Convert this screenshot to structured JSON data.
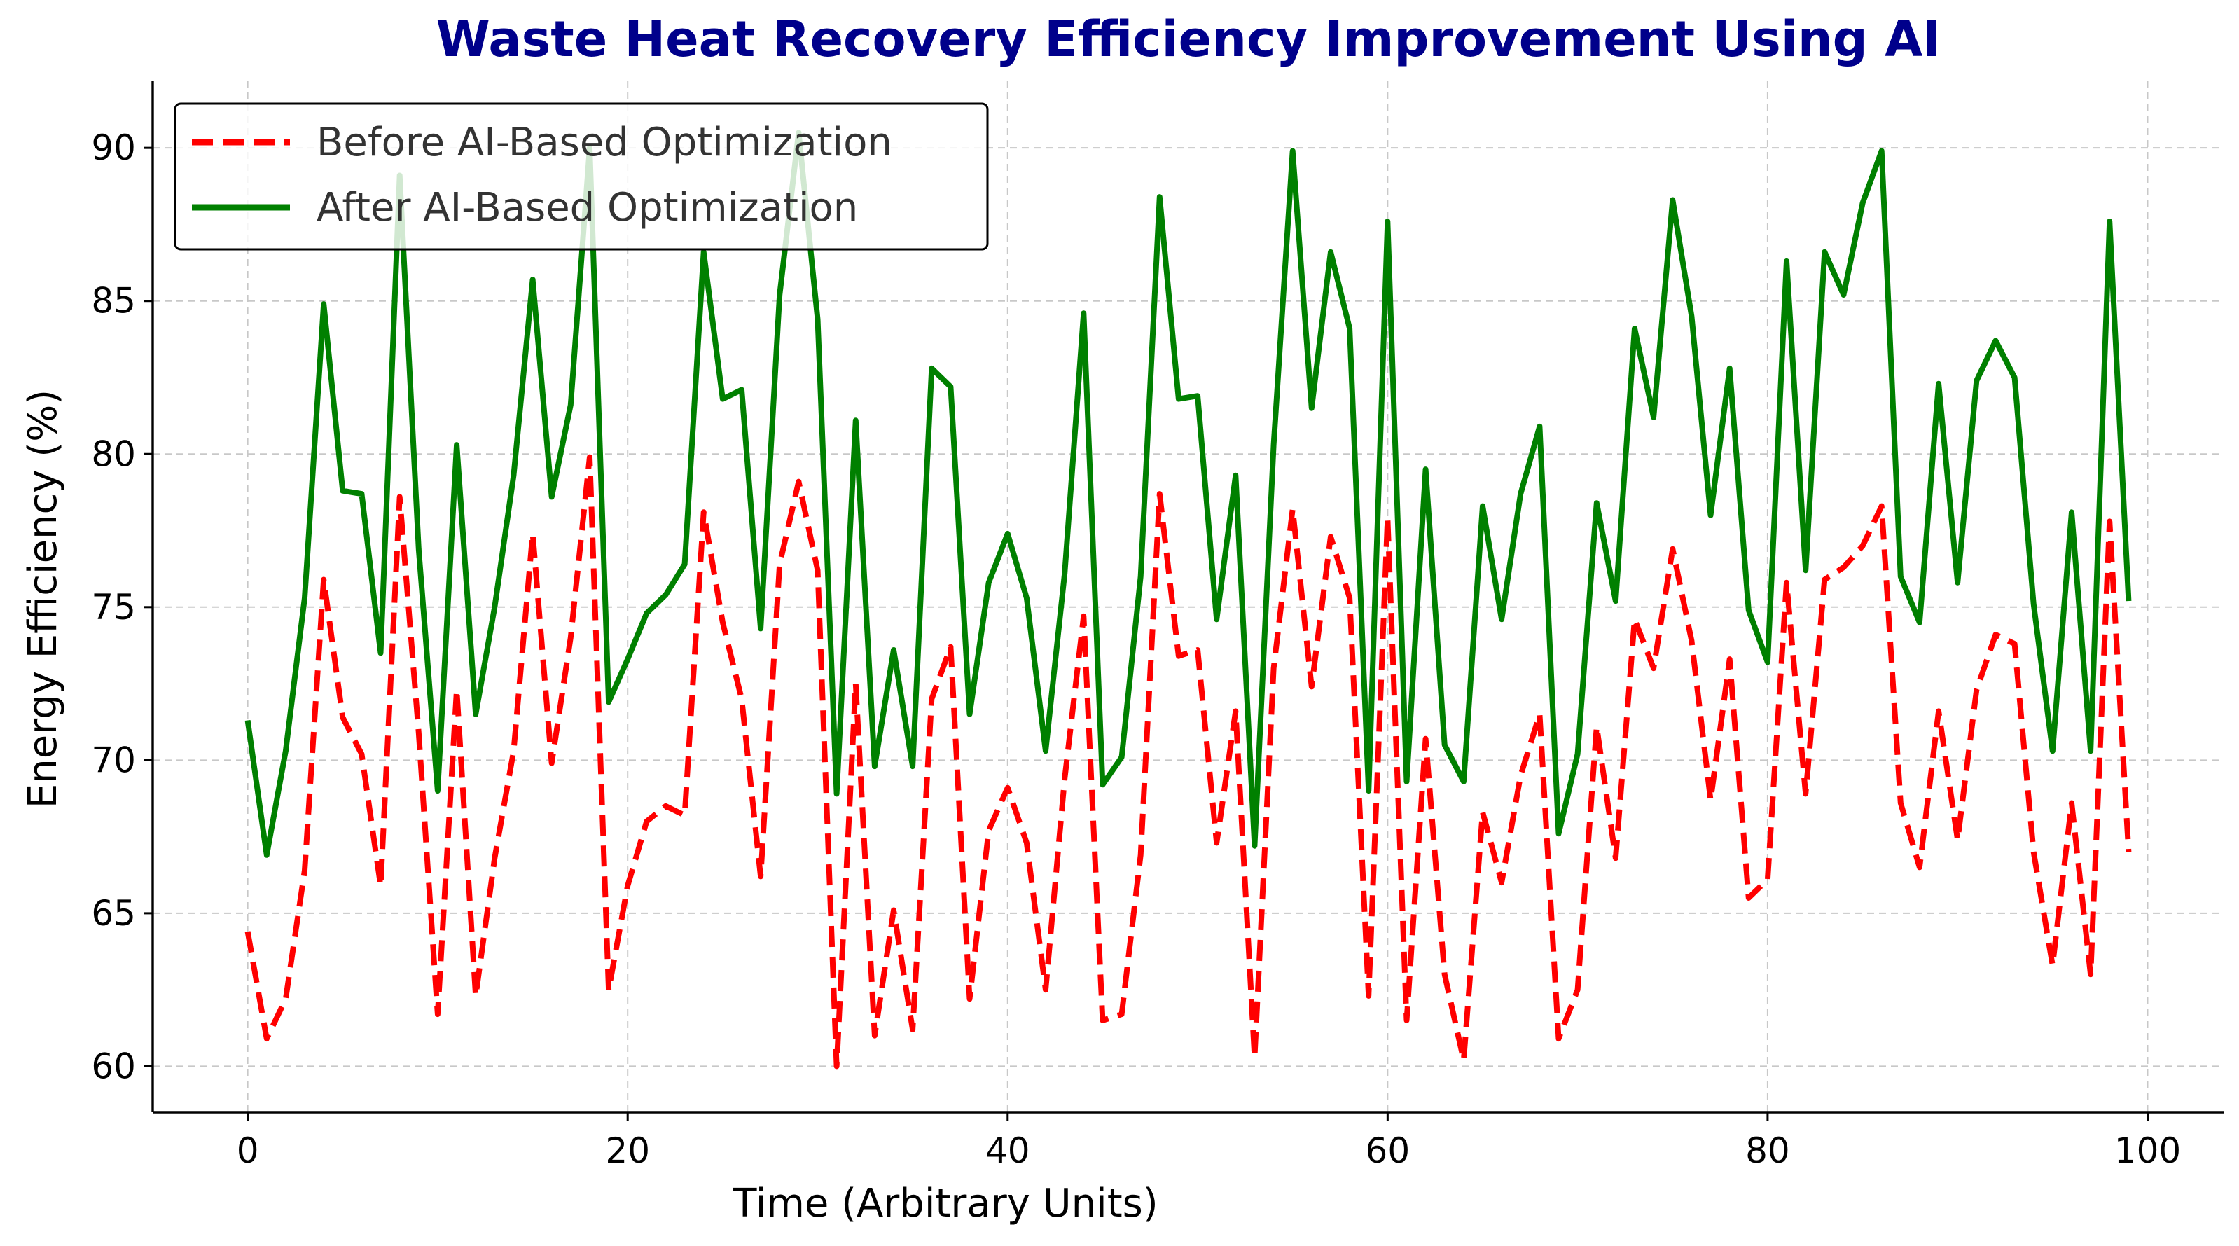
{
  "chart_data": {
    "type": "line",
    "title": "Waste Heat Recovery Efficiency Improvement Using AI",
    "xlabel": "Time (Arbitrary Units)",
    "ylabel": "Energy Efficiency (%)",
    "xlim": [
      -5,
      104
    ],
    "ylim": [
      58.5,
      92.2
    ],
    "x_ticks": [
      0,
      20,
      40,
      60,
      80,
      100
    ],
    "y_ticks": [
      60,
      65,
      70,
      75,
      80,
      85,
      90
    ],
    "grid": true,
    "legend_position": "top-left",
    "x": [
      0,
      1,
      2,
      3,
      4,
      5,
      6,
      7,
      8,
      9,
      10,
      11,
      12,
      13,
      14,
      15,
      16,
      17,
      18,
      19,
      20,
      21,
      22,
      23,
      24,
      25,
      26,
      27,
      28,
      29,
      30,
      31,
      32,
      33,
      34,
      35,
      36,
      37,
      38,
      39,
      40,
      41,
      42,
      43,
      44,
      45,
      46,
      47,
      48,
      49,
      50,
      51,
      52,
      53,
      54,
      55,
      56,
      57,
      58,
      59,
      60,
      61,
      62,
      63,
      64,
      65,
      66,
      67,
      68,
      69,
      70,
      71,
      72,
      73,
      74,
      75,
      76,
      77,
      78,
      79,
      80,
      81,
      82,
      83,
      84,
      85,
      86,
      87,
      88,
      89,
      90,
      91,
      92,
      93,
      94,
      95,
      96,
      97,
      98,
      99
    ],
    "series": [
      {
        "name": "Before AI-Based Optimization",
        "color": "#ff0000",
        "style": "dashed",
        "values": [
          64.4,
          60.9,
          62.2,
          66.4,
          75.9,
          71.4,
          70.2,
          65.9,
          78.6,
          70.9,
          61.7,
          72.3,
          62.3,
          66.8,
          70.3,
          77.4,
          69.9,
          74.0,
          79.9,
          62.5,
          65.9,
          68.0,
          68.5,
          68.2,
          78.1,
          74.5,
          72.0,
          66.2,
          76.4,
          79.1,
          76.2,
          60.0,
          72.5,
          61.0,
          65.1,
          61.2,
          72.0,
          73.7,
          62.2,
          67.7,
          69.1,
          67.3,
          62.5,
          69.4,
          74.7,
          61.5,
          61.7,
          66.9,
          78.7,
          73.4,
          73.6,
          67.3,
          71.6,
          60.3,
          73.0,
          78.2,
          72.4,
          77.3,
          75.3,
          62.3,
          77.9,
          61.5,
          70.7,
          63.0,
          60.2,
          68.3,
          66.0,
          69.5,
          71.5,
          60.9,
          62.5,
          71.1,
          66.8,
          74.6,
          73.0,
          76.9,
          73.9,
          68.7,
          73.3,
          65.5,
          66.1,
          75.8,
          68.9,
          75.9,
          76.3,
          77.0,
          78.3,
          68.6,
          66.5,
          71.6,
          67.4,
          72.3,
          74.1,
          73.8,
          67.0,
          63.3,
          68.6,
          63.0,
          77.8,
          67.0
        ]
      },
      {
        "name": "After AI-Based Optimization",
        "color": "#008000",
        "style": "solid",
        "values": [
          71.3,
          66.9,
          70.3,
          75.3,
          84.9,
          78.8,
          78.7,
          73.5,
          89.1,
          76.9,
          69.0,
          80.3,
          71.5,
          75.0,
          79.3,
          85.7,
          78.6,
          81.6,
          90.0,
          71.9,
          73.3,
          74.8,
          75.4,
          76.4,
          86.6,
          81.8,
          82.1,
          74.3,
          85.2,
          90.5,
          84.4,
          68.9,
          81.1,
          69.8,
          73.6,
          69.8,
          82.8,
          82.2,
          71.5,
          75.8,
          77.4,
          75.3,
          70.3,
          76.1,
          84.6,
          69.2,
          70.1,
          76.0,
          88.4,
          81.8,
          81.9,
          74.6,
          79.3,
          67.2,
          80.3,
          89.9,
          81.5,
          86.6,
          84.1,
          69.0,
          87.6,
          69.3,
          79.5,
          70.5,
          69.3,
          78.3,
          74.6,
          78.7,
          80.9,
          67.6,
          70.2,
          78.4,
          75.2,
          84.1,
          81.2,
          88.3,
          84.5,
          78.0,
          82.8,
          74.9,
          73.2,
          86.3,
          76.2,
          86.6,
          85.2,
          88.2,
          89.9,
          76.0,
          74.5,
          82.3,
          75.8,
          82.4,
          83.7,
          82.5,
          75.1,
          70.3,
          78.1,
          70.3,
          87.6,
          75.2
        ]
      }
    ]
  }
}
